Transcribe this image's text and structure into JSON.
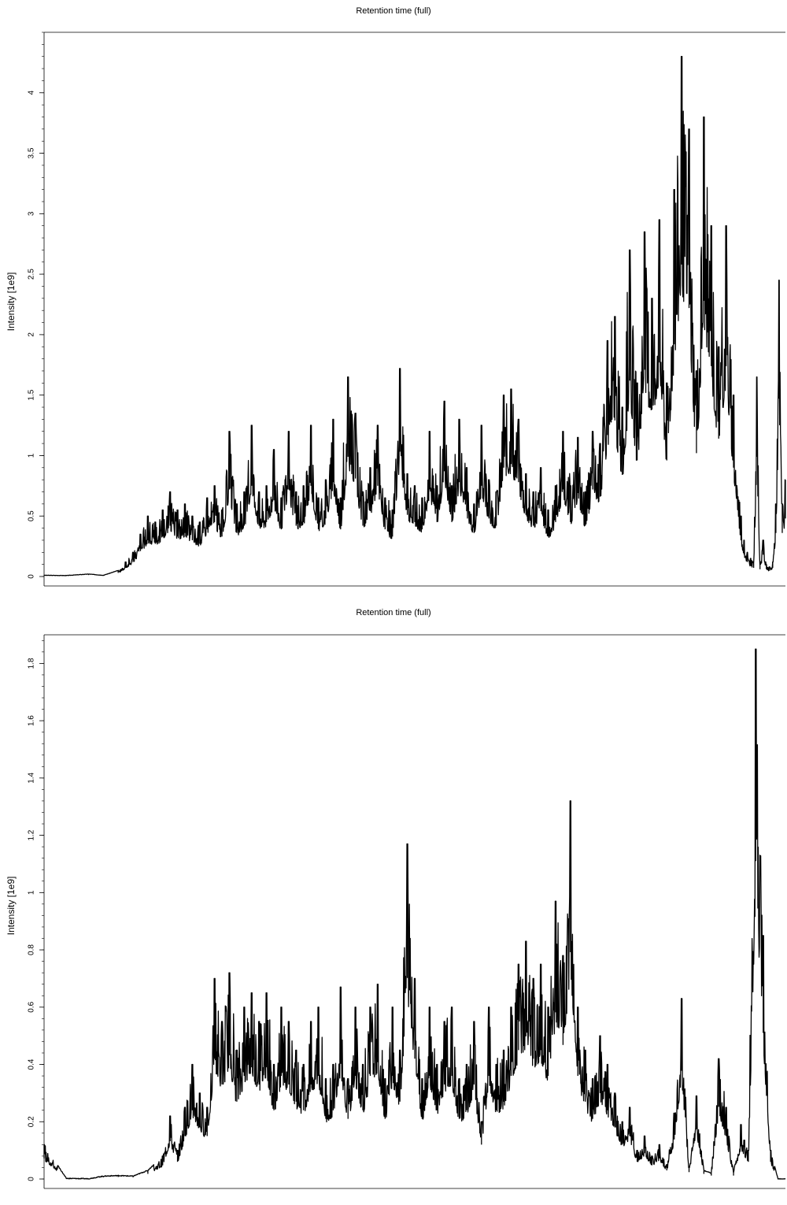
{
  "chart_data": [
    {
      "type": "line",
      "title": "Retention time (full)",
      "xlabel": "",
      "ylabel": "Intensity [1e9]",
      "ylim": [
        0,
        4.5
      ],
      "yticks": [
        "0",
        "0.5",
        "1",
        "1.5",
        "2",
        "2.5",
        "3",
        "3.5",
        "4"
      ],
      "ytick_values": [
        0,
        0.5,
        1,
        1.5,
        2,
        2.5,
        3,
        3.5,
        4
      ],
      "grid": false,
      "color": "#000000",
      "series": [
        {
          "x": [
            0,
            3,
            6,
            8,
            10,
            11,
            12,
            13,
            14,
            15,
            16,
            17,
            18,
            19,
            20,
            21,
            22,
            23,
            24,
            25,
            26,
            27,
            28,
            29,
            30,
            31,
            32,
            33,
            34,
            35,
            36,
            37,
            38,
            39,
            40,
            41,
            42,
            43,
            44,
            45,
            46,
            47,
            48,
            49,
            50,
            51,
            52,
            53,
            54,
            55,
            56,
            57,
            58,
            59,
            60,
            61,
            62,
            63,
            64,
            65,
            66,
            67,
            68,
            69,
            70,
            71,
            72,
            73,
            74,
            75,
            76,
            77,
            78,
            79,
            80,
            81,
            82,
            83,
            84,
            85,
            86,
            87,
            88,
            89,
            90,
            91,
            92,
            93,
            94,
            95,
            96,
            97,
            98,
            99,
            100
          ],
          "y": [
            0.01,
            0.008,
            0.02,
            0.01,
            0.05,
            0.12,
            0.2,
            0.35,
            0.5,
            0.45,
            0.55,
            0.7,
            0.55,
            0.6,
            0.5,
            0.45,
            0.65,
            0.75,
            0.55,
            1.2,
            0.6,
            0.7,
            1.25,
            0.7,
            0.75,
            1.05,
            0.65,
            1.2,
            0.7,
            0.75,
            1.25,
            0.65,
            0.8,
            1.3,
            0.65,
            1.65,
            1.35,
            0.7,
            0.9,
            1.25,
            0.65,
            0.55,
            1.72,
            0.85,
            0.75,
            0.65,
            1.2,
            0.75,
            1.45,
            0.75,
            1.3,
            0.9,
            0.6,
            1.25,
            0.8,
            0.7,
            1.5,
            1.55,
            1.3,
            0.85,
            0.7,
            0.9,
            0.55,
            0.75,
            1.2,
            0.75,
            1.15,
            0.7,
            1.2,
            1.1,
            1.95,
            2.15,
            1.4,
            2.7,
            1.6,
            2.85,
            2.3,
            2.95,
            1.6,
            3.2,
            4.3,
            3.7,
            1.7,
            3.8,
            2.9,
            1.9,
            2.9,
            1.5,
            1.05,
            2.6,
            1.6,
            2.0,
            1.5,
            1.1,
            0.5
          ]
        }
      ],
      "series_tail": [
        0.5,
        0.3,
        0.2,
        0.15,
        0.12,
        1.65,
        0.1,
        0.3,
        0.1,
        0.08,
        0.12,
        0.6,
        2.45,
        0.6,
        0.8
      ]
    },
    {
      "type": "line",
      "title": "Retention time (full)",
      "xlabel": "",
      "ylabel": "Intensity [1e9]",
      "ylim": [
        0,
        1.9
      ],
      "yticks": [
        "0",
        "0.2",
        "0.4",
        "0.6",
        "0.8",
        "1",
        "1.2",
        "1.4",
        "1.6",
        "1.8"
      ],
      "ytick_values": [
        0,
        0.2,
        0.4,
        0.6,
        0.8,
        1,
        1.2,
        1.4,
        1.6,
        1.8
      ],
      "grid": false,
      "color": "#000000",
      "series": [
        {
          "x": [
            0,
            3,
            6,
            8,
            10,
            12,
            14,
            16,
            17,
            18,
            19,
            20,
            21,
            22,
            23,
            24,
            25,
            26,
            27,
            28,
            29,
            30,
            31,
            32,
            33,
            34,
            35,
            36,
            37,
            38,
            39,
            40,
            41,
            42,
            43,
            44,
            45,
            46,
            47,
            48,
            49,
            50,
            51,
            52,
            53,
            54,
            55,
            56,
            57,
            58,
            59,
            60,
            61,
            62,
            63,
            64,
            65,
            66,
            67,
            68,
            69,
            70,
            71,
            72,
            73,
            74,
            75,
            76,
            77,
            78,
            79,
            80,
            81,
            82,
            83,
            84,
            85,
            86,
            87,
            88,
            89,
            90,
            91,
            92,
            93,
            94,
            95,
            96,
            97,
            98,
            99,
            100
          ],
          "y": [
            0.12,
            0.002,
            0.001,
            0.01,
            0.012,
            0.01,
            0.03,
            0.08,
            0.22,
            0.1,
            0.25,
            0.4,
            0.3,
            0.25,
            0.7,
            0.55,
            0.72,
            0.45,
            0.6,
            0.65,
            0.55,
            0.65,
            0.4,
            0.6,
            0.55,
            0.45,
            0.4,
            0.55,
            0.6,
            0.35,
            0.4,
            0.67,
            0.35,
            0.6,
            0.4,
            0.6,
            0.68,
            0.35,
            0.6,
            0.45,
            1.17,
            0.7,
            0.35,
            0.6,
            0.4,
            0.55,
            0.6,
            0.35,
            0.4,
            0.55,
            0.2,
            0.6,
            0.4,
            0.45,
            0.6,
            0.75,
            0.83,
            0.7,
            0.75,
            0.6,
            0.97,
            0.78,
            1.32,
            0.6,
            0.45,
            0.35,
            0.5,
            0.4,
            0.3,
            0.2,
            0.25,
            0.1,
            0.15,
            0.08,
            0.12,
            0.05,
            0.23,
            0.63,
            0.04,
            0.29,
            0.03,
            0.02,
            0.42,
            0.25,
            0.02,
            0.19,
            0.1,
            1.85,
            0.85,
            0.1,
            0.0,
            0.0
          ]
        }
      ]
    }
  ]
}
